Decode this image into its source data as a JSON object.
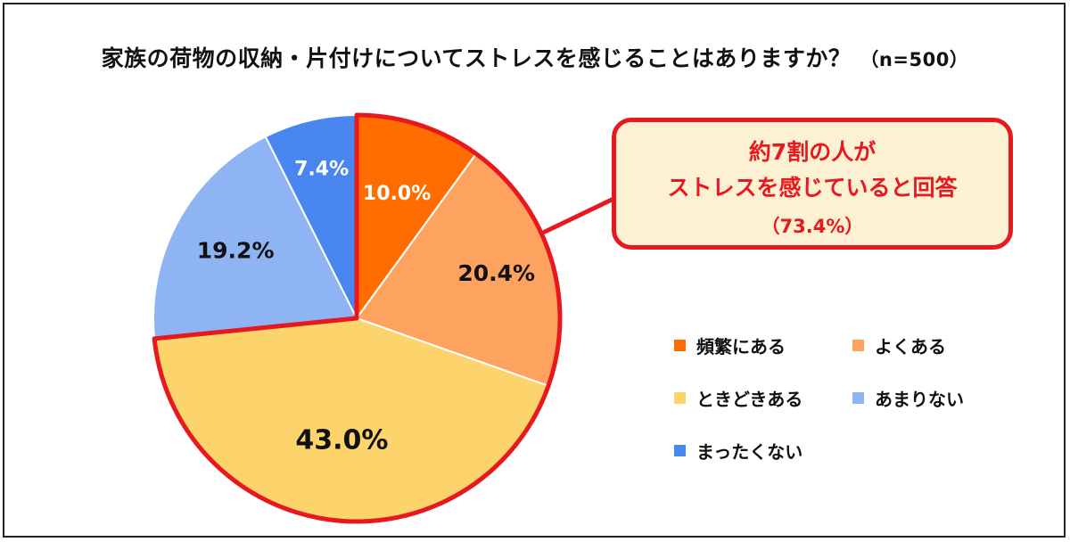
{
  "title": "家族の荷物の収納・片付けについてストレスを感じることはありますか？",
  "sample_size": "（n=500）",
  "callout": {
    "line1": "約7割の人が",
    "line2": "ストレスを感じていると回答",
    "line3": "（73.4%）"
  },
  "chart_data": {
    "type": "pie",
    "title": "家族の荷物の収納・片付けについてストレスを感じることはありますか？（n=500）",
    "categories": [
      "頻繁にある",
      "よくある",
      "ときどきある",
      "あまりない",
      "まったくない"
    ],
    "values": [
      10.0,
      20.4,
      43.0,
      19.2,
      7.4
    ],
    "labels": [
      "10.0%",
      "20.4%",
      "43.0%",
      "19.2%",
      "7.4%"
    ],
    "colors": [
      "#ff6d00",
      "#fda35f",
      "#fcd46b",
      "#8fb4f4",
      "#4a86f0"
    ],
    "label_colors": [
      "#ffffff",
      "#111111",
      "#111111",
      "#111111",
      "#ffffff"
    ],
    "start_angle_deg": 0,
    "direction": "clockwise",
    "highlight": {
      "categories": [
        "頻繁にある",
        "よくある",
        "ときどきある"
      ],
      "total": "73.4%",
      "color": "#e8191e"
    },
    "legend_position": "right"
  }
}
